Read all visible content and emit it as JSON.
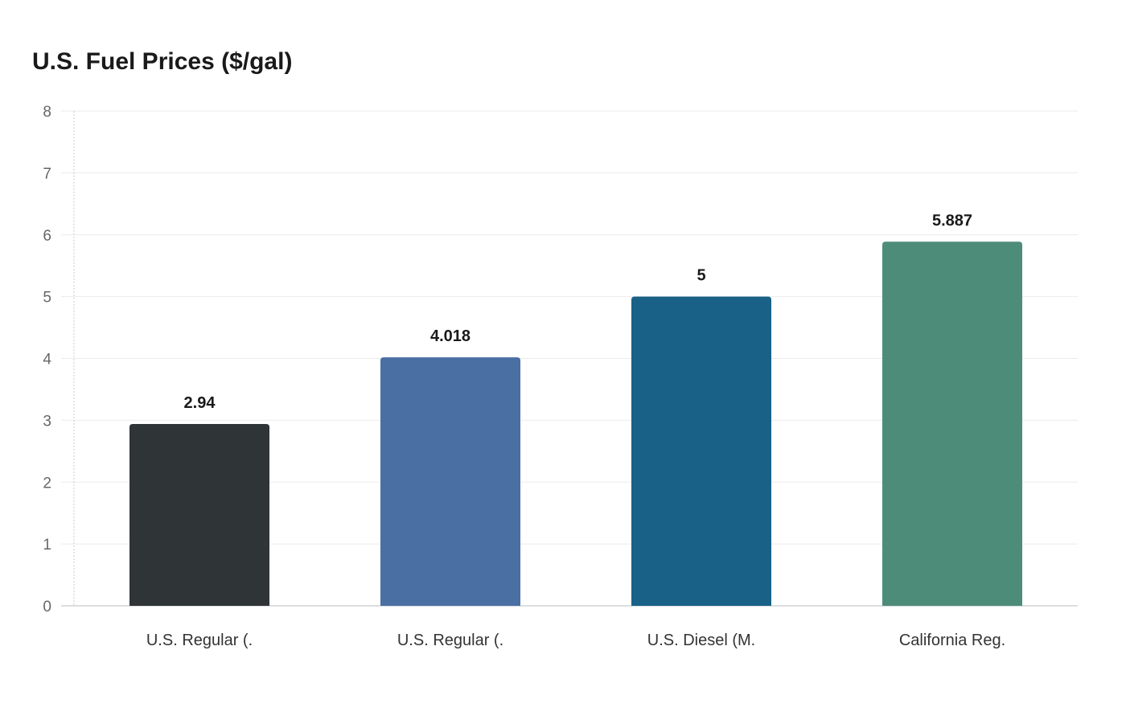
{
  "chart_data": {
    "type": "bar",
    "title": "U.S. Fuel Prices ($/gal)",
    "xlabel": "",
    "ylabel": "",
    "categories": [
      "U.S. Regular (.",
      "U.S. Regular (.",
      "U.S. Diesel (M.",
      "California Reg."
    ],
    "values": [
      2.94,
      4.018,
      5,
      5.887
    ],
    "value_labels": [
      "2.94",
      "4.018",
      "5",
      "5.887"
    ],
    "colors": [
      "#2f3437",
      "#4a6fa3",
      "#1a6187",
      "#4e8c7a"
    ],
    "ylim": [
      0,
      8
    ],
    "yticks": [
      "0",
      "1",
      "2",
      "3",
      "4",
      "5",
      "6",
      "7",
      "8"
    ],
    "grid": true,
    "legend": "none"
  }
}
